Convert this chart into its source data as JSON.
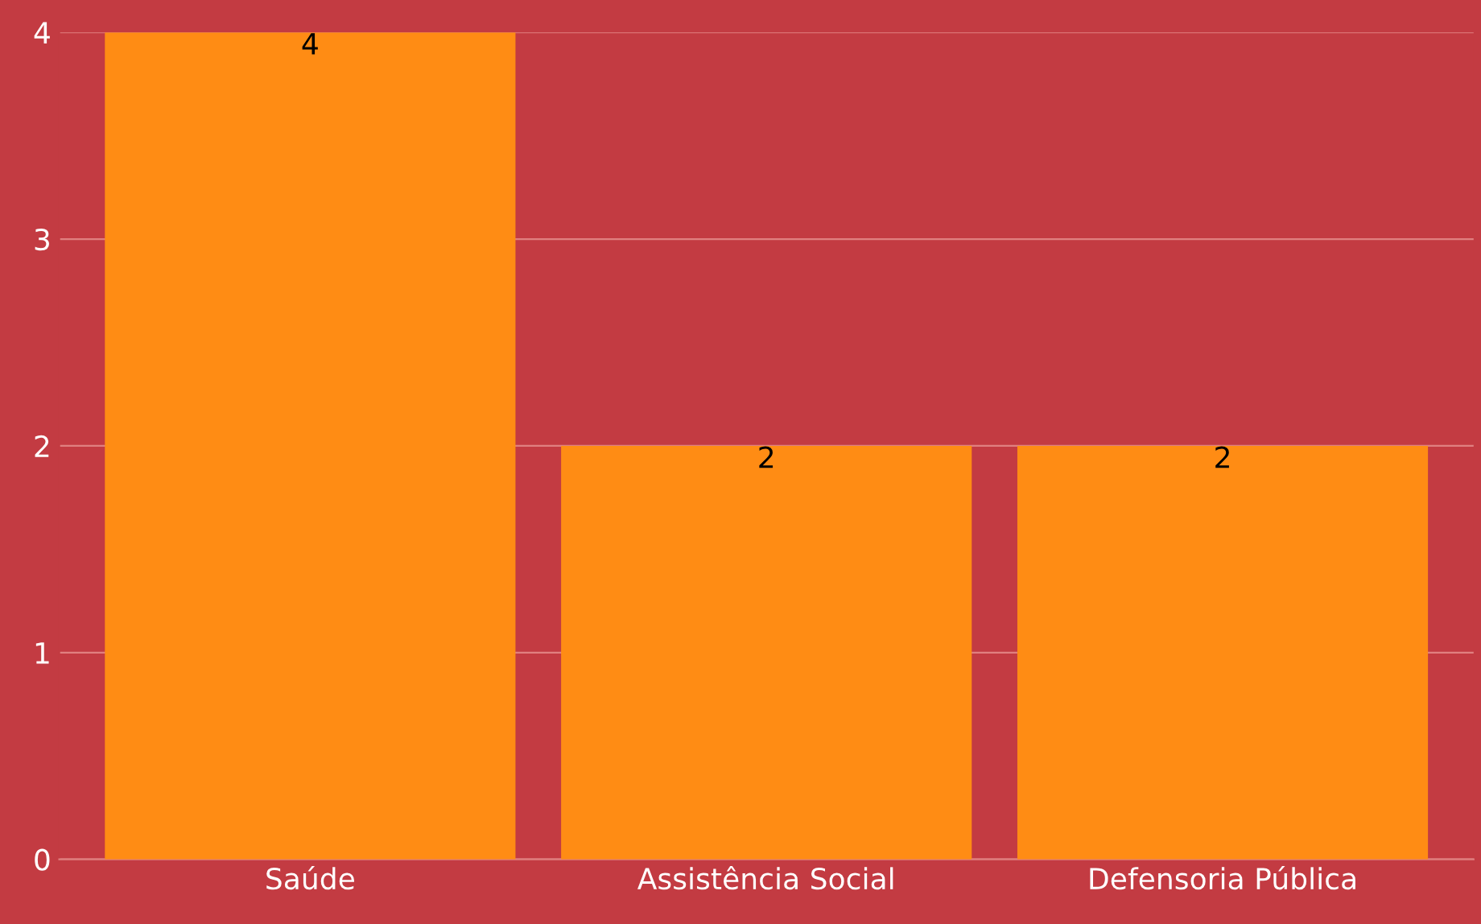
{
  "chart_data": {
    "type": "bar",
    "categories": [
      "Saúde",
      "Assistência Social",
      "Defensoria Pública"
    ],
    "values": [
      4,
      2,
      2
    ],
    "color": "#ff8c14",
    "ylim": [
      0,
      4
    ],
    "yticks": [
      0,
      1,
      2,
      3,
      4
    ],
    "grid": "y",
    "data_labels": true
  }
}
